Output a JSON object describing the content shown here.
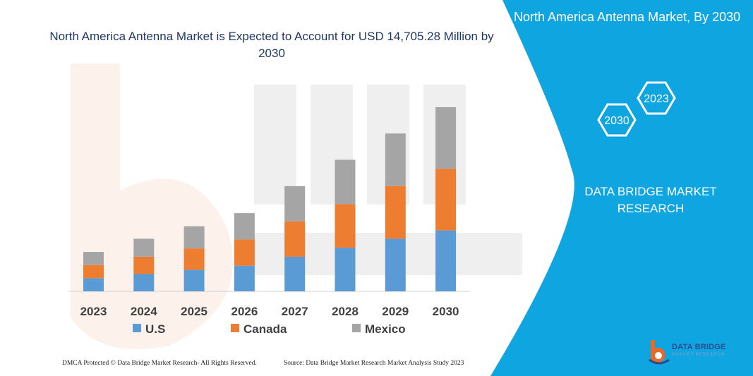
{
  "chart_data": {
    "type": "bar",
    "stacked": true,
    "title": "North America Antenna Market is Expected to Account for USD 14,705.28 Million by 2030",
    "categories": [
      "2023",
      "2024",
      "2025",
      "2026",
      "2027",
      "2028",
      "2029",
      "2030"
    ],
    "series": [
      {
        "name": "U.S",
        "color": "#5b9bd5",
        "values": [
          19,
          25,
          31,
          37,
          50,
          63,
          76,
          88
        ]
      },
      {
        "name": "Canada",
        "color": "#ed7d31",
        "values": [
          19,
          25,
          31,
          38,
          51,
          63,
          76,
          89
        ]
      },
      {
        "name": "Mexico",
        "color": "#a5a5a5",
        "values": [
          19,
          26,
          32,
          38,
          51,
          64,
          76,
          89
        ]
      }
    ],
    "ylim": [
      0,
      270
    ],
    "grid": false,
    "legend": "bottom"
  },
  "panel": {
    "title": "North America Antenna Market, By 2030",
    "hex_labels": [
      "2030",
      "2023"
    ],
    "company": "DATA BRIDGE MARKET RESEARCH",
    "accent": "#0ea5e0"
  },
  "footer": {
    "left": "DMCA Protected © Data Bridge Market Research-  All Rights Reserved.",
    "right": "Source: Data Bridge Market Research  Market Analysis Study 2023"
  },
  "logo": {
    "name": "DATA BRIDGE",
    "sub": "MARKET RESEARCH"
  }
}
